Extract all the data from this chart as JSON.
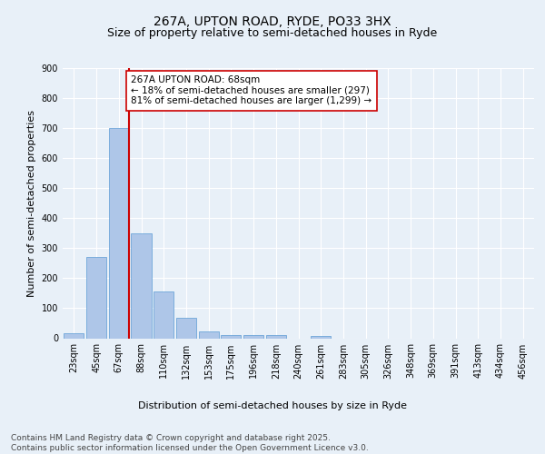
{
  "title1": "267A, UPTON ROAD, RYDE, PO33 3HX",
  "title2": "Size of property relative to semi-detached houses in Ryde",
  "xlabel": "Distribution of semi-detached houses by size in Ryde",
  "ylabel": "Number of semi-detached properties",
  "bar_values": [
    18,
    270,
    700,
    350,
    155,
    68,
    22,
    11,
    12,
    10,
    0,
    7,
    0,
    0,
    0,
    0,
    0,
    0,
    0,
    0,
    0
  ],
  "bar_labels": [
    "23sqm",
    "45sqm",
    "67sqm",
    "88sqm",
    "110sqm",
    "132sqm",
    "153sqm",
    "175sqm",
    "196sqm",
    "218sqm",
    "240sqm",
    "261sqm",
    "283sqm",
    "305sqm",
    "326sqm",
    "348sqm",
    "369sqm",
    "391sqm",
    "413sqm",
    "434sqm",
    "456sqm"
  ],
  "bar_color": "#aec6e8",
  "bar_edge_color": "#5b9bd5",
  "highlight_bar_index": 2,
  "highlight_line_color": "#cc0000",
  "annotation_text": "267A UPTON ROAD: 68sqm\n← 18% of semi-detached houses are smaller (297)\n81% of semi-detached houses are larger (1,299) →",
  "annotation_box_color": "#ffffff",
  "annotation_box_edge_color": "#cc0000",
  "ylim": [
    0,
    900
  ],
  "yticks": [
    0,
    100,
    200,
    300,
    400,
    500,
    600,
    700,
    800,
    900
  ],
  "bg_color": "#e8f0f8",
  "plot_bg_color": "#e8f0f8",
  "grid_color": "#ffffff",
  "footer_text": "Contains HM Land Registry data © Crown copyright and database right 2025.\nContains public sector information licensed under the Open Government Licence v3.0.",
  "title_fontsize": 10,
  "subtitle_fontsize": 9,
  "axis_label_fontsize": 8,
  "tick_fontsize": 7,
  "footer_fontsize": 6.5,
  "annot_fontsize": 7.5
}
